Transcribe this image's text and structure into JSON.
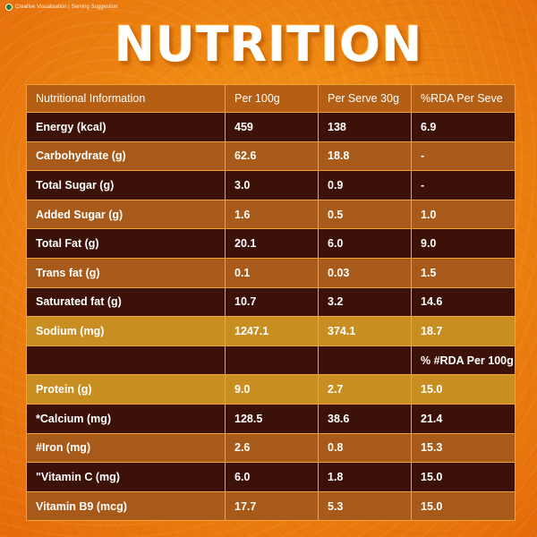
{
  "top_note": "Creative Visualisation | Serving Suggestion",
  "title": "NUTRITION",
  "table": {
    "headers": [
      "Nutritional Information",
      "Per 100g",
      "Per Serve 30g",
      "%RDA Per Seve"
    ],
    "rows": [
      {
        "name": "Energy (kcal)",
        "per100": "459",
        "perServe": "138",
        "rda": "6.9",
        "tone": "dark"
      },
      {
        "name": "Carbohydrate (g)",
        "per100": "62.6",
        "perServe": "18.8",
        "rda": "-",
        "tone": "light"
      },
      {
        "name": "Total Sugar (g)",
        "per100": "3.0",
        "perServe": "0.9",
        "rda": "-",
        "tone": "dark"
      },
      {
        "name": "Added Sugar (g)",
        "per100": "1.6",
        "perServe": "0.5",
        "rda": "1.0",
        "tone": "light"
      },
      {
        "name": "Total Fat (g)",
        "per100": "20.1",
        "perServe": "6.0",
        "rda": "9.0",
        "tone": "dark"
      },
      {
        "name": "Trans fat (g)",
        "per100": "0.1",
        "perServe": "0.03",
        "rda": "1.5",
        "tone": "light"
      },
      {
        "name": "Saturated fat (g)",
        "per100": "10.7",
        "perServe": "3.2",
        "rda": "14.6",
        "tone": "dark"
      },
      {
        "name": "Sodium (mg)",
        "per100": "1247.1",
        "perServe": "374.1",
        "rda": "18.7",
        "tone": "gold"
      },
      {
        "name": "",
        "per100": "",
        "perServe": "",
        "rda": "% #RDA Per 100g",
        "tone": "sub"
      },
      {
        "name": "Protein (g)",
        "per100": "9.0",
        "perServe": "2.7",
        "rda": "15.0",
        "tone": "gold"
      },
      {
        "name": "*Calcium (mg)",
        "per100": "128.5",
        "perServe": "38.6",
        "rda": "21.4",
        "tone": "dark"
      },
      {
        "name": "#Iron (mg)",
        "per100": "2.6",
        "perServe": "0.8",
        "rda": "15.3",
        "tone": "light"
      },
      {
        "name": "\"Vitamin C (mg)",
        "per100": "6.0",
        "perServe": "1.8",
        "rda": "15.0",
        "tone": "dark"
      },
      {
        "name": "Vitamin B9 (mcg)",
        "per100": "17.7",
        "perServe": "5.3",
        "rda": "15.0",
        "tone": "light"
      }
    ]
  },
  "colors": {
    "background": "#ef8a12",
    "row_dark": "#3c1208",
    "row_light": "#a85a1a",
    "row_gold": "#c98e22",
    "header": "#b55f14",
    "veg_mark": "#2a7a2a"
  },
  "icons": {
    "veg_mark": "green-dot-icon"
  }
}
